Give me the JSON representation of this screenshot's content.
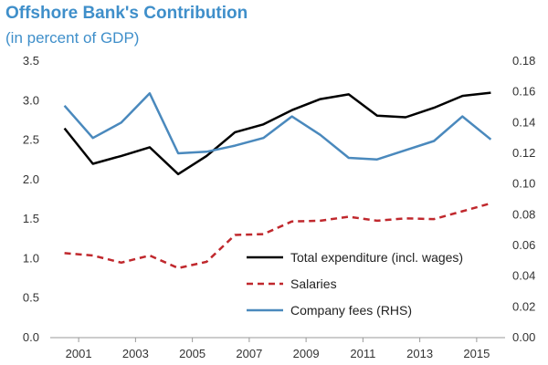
{
  "chart_data": {
    "type": "line",
    "title": "Offshore Bank's Contribution",
    "subtitle": "(in percent of GDP)",
    "x": [
      2000.5,
      2001.5,
      2002.5,
      2003.5,
      2004.5,
      2005.5,
      2006.5,
      2007.5,
      2008.5,
      2009.5,
      2010.5,
      2011.5,
      2012.5,
      2013.5,
      2014.5,
      2015.5
    ],
    "x_ticks": [
      "2001",
      "2003",
      "2005",
      "2007",
      "2009",
      "2011",
      "2013",
      "2015"
    ],
    "x_tick_values": [
      2001,
      2003,
      2005,
      2007,
      2009,
      2011,
      2013,
      2015
    ],
    "xlim": [
      2000,
      2016
    ],
    "ylim_left": [
      0,
      3.5
    ],
    "y_ticks_left": [
      "0.0",
      "0.5",
      "1.0",
      "1.5",
      "2.0",
      "2.5",
      "3.0",
      "3.5"
    ],
    "ylim_right": [
      0,
      0.18
    ],
    "y_ticks_right": [
      "0.00",
      "0.02",
      "0.04",
      "0.06",
      "0.08",
      "0.10",
      "0.12",
      "0.14",
      "0.16",
      "0.18"
    ],
    "grid": false,
    "legend_position": "center-right",
    "series": [
      {
        "name": "Total expenditure (incl. wages)",
        "axis": "left",
        "color": "#000000",
        "style": "solid",
        "values": [
          2.65,
          2.2,
          2.3,
          2.41,
          2.07,
          2.3,
          2.6,
          2.7,
          2.88,
          3.02,
          3.08,
          2.81,
          2.79,
          2.91,
          3.06,
          3.1
        ]
      },
      {
        "name": "Salaries",
        "axis": "left",
        "color": "#c0282d",
        "style": "dashed",
        "values": [
          1.07,
          1.04,
          0.95,
          1.04,
          0.88,
          0.96,
          1.3,
          1.31,
          1.47,
          1.48,
          1.53,
          1.48,
          1.51,
          1.5,
          1.6,
          1.7
        ]
      },
      {
        "name": "Company fees (RHS)",
        "axis": "right",
        "color": "#4a89bd",
        "style": "solid",
        "values": [
          0.151,
          0.13,
          0.14,
          0.159,
          0.12,
          0.121,
          0.125,
          0.13,
          0.144,
          0.132,
          0.117,
          0.116,
          0.122,
          0.128,
          0.144,
          0.129
        ]
      }
    ]
  }
}
